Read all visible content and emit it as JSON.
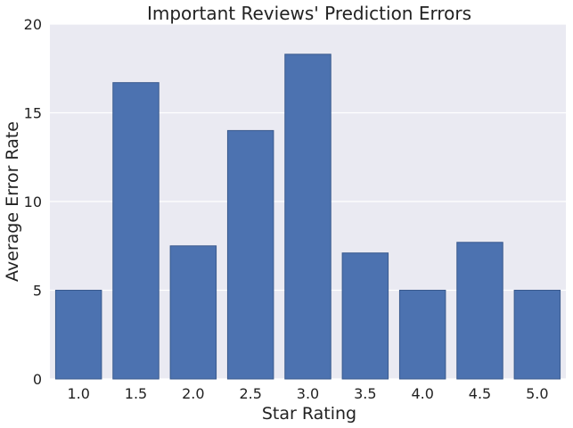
{
  "chart_data": {
    "type": "bar",
    "title": "Important Reviews' Prediction Errors",
    "xlabel": "Star Rating",
    "ylabel": "Average Error Rate",
    "categories": [
      "1.0",
      "1.5",
      "2.0",
      "2.5",
      "3.0",
      "3.5",
      "4.0",
      "4.5",
      "5.0"
    ],
    "values": [
      5.0,
      16.7,
      7.5,
      14.0,
      18.3,
      7.1,
      5.0,
      7.7,
      5.0
    ],
    "ylim": [
      0,
      20
    ],
    "yticks": [
      "0",
      "5",
      "10",
      "15",
      "20"
    ],
    "grid": true,
    "colors": {
      "bar": "#4c72b0",
      "bar_edge": "#3a5a8e",
      "background": "#eaeaf2",
      "grid": "#ffffff"
    }
  }
}
